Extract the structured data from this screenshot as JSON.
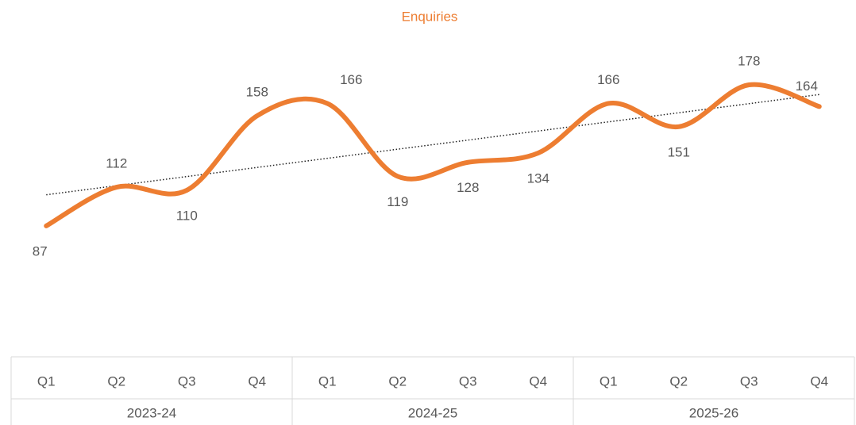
{
  "chart_data": {
    "type": "line",
    "title": "Enquiries",
    "categories": [
      "Q1",
      "Q2",
      "Q3",
      "Q4",
      "Q1",
      "Q2",
      "Q3",
      "Q4",
      "Q1",
      "Q2",
      "Q3",
      "Q4"
    ],
    "groups": [
      "2023-24",
      "2024-25",
      "2025-26"
    ],
    "values": [
      87,
      112,
      110,
      158,
      166,
      119,
      128,
      134,
      166,
      151,
      178,
      164
    ],
    "color": "#ed7d31",
    "smooth": true,
    "trendline": "linear",
    "ylim": [
      0,
      200
    ]
  }
}
